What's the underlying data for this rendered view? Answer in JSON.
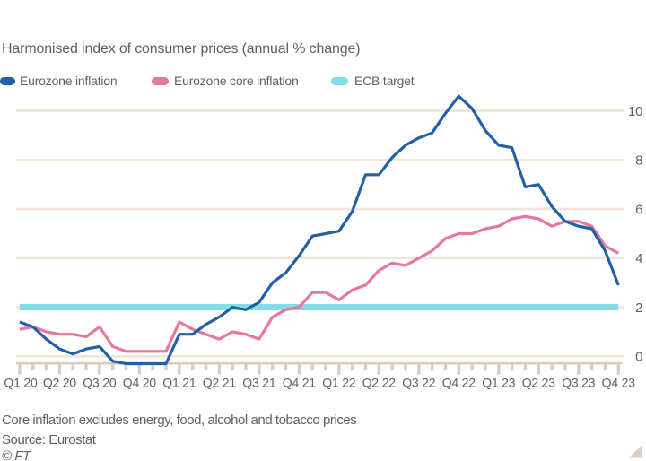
{
  "chart_data": {
    "type": "line",
    "subtitle": "Harmonised index of consumer prices (annual % change)",
    "x_frequency": "monthly",
    "x_start": "Jan 2020",
    "x_end": "Oct 2023",
    "x_tick_labels": [
      "Q1 20",
      "Q2 20",
      "Q3 20",
      "Q4 20",
      "Q1 21",
      "Q2 21",
      "Q3 21",
      "Q4 21",
      "Q1 22",
      "Q2 22",
      "Q3 22",
      "Q4 22",
      "Q1 23",
      "Q2 23",
      "Q3 23",
      "Q4 23"
    ],
    "ylim": [
      0,
      10
    ],
    "yticks": [
      0,
      2,
      4,
      6,
      8,
      10
    ],
    "grid": "horizontal",
    "legend_position": "top",
    "series": [
      {
        "name": "Eurozone inflation",
        "color": "#2261a7",
        "values": [
          1.4,
          1.2,
          0.7,
          0.3,
          0.1,
          0.3,
          0.4,
          -0.2,
          -0.3,
          -0.3,
          -0.3,
          -0.3,
          0.9,
          0.9,
          1.3,
          1.6,
          2.0,
          1.9,
          2.2,
          3.0,
          3.4,
          4.1,
          4.9,
          5.0,
          5.1,
          5.9,
          7.4,
          7.4,
          8.1,
          8.6,
          8.9,
          9.1,
          9.9,
          10.6,
          10.1,
          9.2,
          8.6,
          8.5,
          6.9,
          7.0,
          6.1,
          5.5,
          5.3,
          5.2,
          4.3,
          2.9
        ]
      },
      {
        "name": "Eurozone core inflation",
        "color": "#e8779d",
        "values": [
          1.1,
          1.2,
          1.0,
          0.9,
          0.9,
          0.8,
          1.2,
          0.4,
          0.2,
          0.2,
          0.2,
          0.2,
          1.4,
          1.1,
          0.9,
          0.7,
          1.0,
          0.9,
          0.7,
          1.6,
          1.9,
          2.0,
          2.6,
          2.6,
          2.3,
          2.7,
          2.9,
          3.5,
          3.8,
          3.7,
          4.0,
          4.3,
          4.8,
          5.0,
          5.0,
          5.2,
          5.3,
          5.6,
          5.7,
          5.6,
          5.3,
          5.5,
          5.5,
          5.3,
          4.5,
          4.2
        ]
      },
      {
        "name": "ECB target",
        "color": "#82dde9",
        "type": "constant",
        "value": 2
      }
    ]
  },
  "colors": {
    "background": "#ffffff",
    "text": "#66605b",
    "grid": "#f2e4d6",
    "axis": "#dbccbe",
    "expand_icon": "#ded0c2"
  },
  "footer": {
    "note": "Core inflation excludes energy, food, alcohol and tobacco prices",
    "source": "Source: Eurostat",
    "copyright": "© FT"
  },
  "icons": {
    "expand": "expand-triangle-icon"
  }
}
